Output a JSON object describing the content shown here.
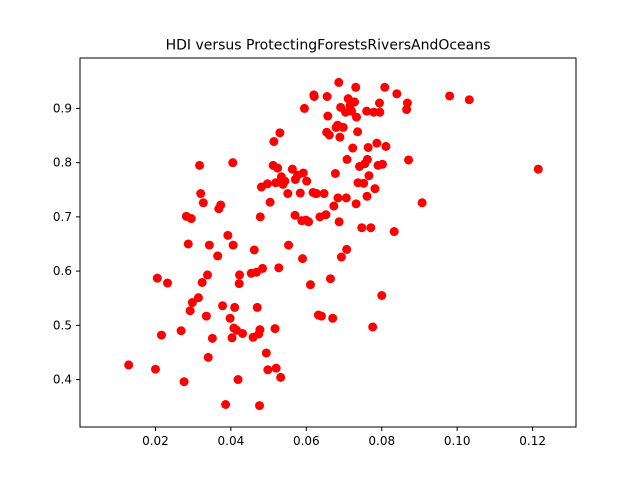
{
  "chart_data": {
    "type": "scatter",
    "title": "HDI versus ProtectingForestsRiversAndOceans",
    "xlabel": "",
    "ylabel": "",
    "xlim": [
      0.0,
      0.1315
    ],
    "ylim": [
      0.3125,
      0.993
    ],
    "xticks": [
      0.02,
      0.04,
      0.06,
      0.08,
      0.1,
      0.12
    ],
    "xtick_labels": [
      "0.02",
      "0.04",
      "0.06",
      "0.08",
      "0.10",
      "0.12"
    ],
    "yticks": [
      0.4,
      0.5,
      0.6,
      0.7,
      0.8,
      0.9
    ],
    "ytick_labels": [
      "0.4",
      "0.5",
      "0.6",
      "0.7",
      "0.8",
      "0.9"
    ],
    "grid": false,
    "legend": "none",
    "marker_color": "#ff0000",
    "points": [
      [
        0.0129,
        0.427
      ],
      [
        0.02,
        0.419
      ],
      [
        0.0205,
        0.587
      ],
      [
        0.0216,
        0.482
      ],
      [
        0.0232,
        0.578
      ],
      [
        0.0268,
        0.49
      ],
      [
        0.0276,
        0.396
      ],
      [
        0.0282,
        0.701
      ],
      [
        0.0287,
        0.65
      ],
      [
        0.0292,
        0.527
      ],
      [
        0.0295,
        0.697
      ],
      [
        0.0298,
        0.542
      ],
      [
        0.0314,
        0.551
      ],
      [
        0.0317,
        0.795
      ],
      [
        0.032,
        0.743
      ],
      [
        0.0324,
        0.579
      ],
      [
        0.0327,
        0.726
      ],
      [
        0.0335,
        0.517
      ],
      [
        0.0338,
        0.593
      ],
      [
        0.034,
        0.441
      ],
      [
        0.0343,
        0.648
      ],
      [
        0.0351,
        0.476
      ],
      [
        0.0365,
        0.628
      ],
      [
        0.0368,
        0.715
      ],
      [
        0.0373,
        0.722
      ],
      [
        0.0378,
        0.536
      ],
      [
        0.0386,
        0.354
      ],
      [
        0.0392,
        0.666
      ],
      [
        0.0398,
        0.513
      ],
      [
        0.0403,
        0.477
      ],
      [
        0.0405,
        0.8
      ],
      [
        0.0406,
        0.648
      ],
      [
        0.0408,
        0.495
      ],
      [
        0.041,
        0.533
      ],
      [
        0.0415,
        0.491
      ],
      [
        0.0419,
        0.4
      ],
      [
        0.0422,
        0.577
      ],
      [
        0.0423,
        0.593
      ],
      [
        0.0431,
        0.485
      ],
      [
        0.0454,
        0.596
      ],
      [
        0.0459,
        0.478
      ],
      [
        0.0462,
        0.639
      ],
      [
        0.0468,
        0.598
      ],
      [
        0.047,
        0.533
      ],
      [
        0.0474,
        0.484
      ],
      [
        0.0476,
        0.352
      ],
      [
        0.0477,
        0.492
      ],
      [
        0.0478,
        0.7
      ],
      [
        0.0481,
        0.755
      ],
      [
        0.0484,
        0.605
      ],
      [
        0.0494,
        0.449
      ],
      [
        0.0497,
        0.761
      ],
      [
        0.0498,
        0.418
      ],
      [
        0.0504,
        0.727
      ],
      [
        0.0512,
        0.795
      ],
      [
        0.0514,
        0.839
      ],
      [
        0.0517,
        0.494
      ],
      [
        0.0519,
        0.763
      ],
      [
        0.052,
        0.421
      ],
      [
        0.0524,
        0.79
      ],
      [
        0.0527,
        0.606
      ],
      [
        0.053,
        0.855
      ],
      [
        0.0532,
        0.404
      ],
      [
        0.0534,
        0.774
      ],
      [
        0.0538,
        0.76
      ],
      [
        0.0543,
        0.766
      ],
      [
        0.0551,
        0.743
      ],
      [
        0.0553,
        0.648
      ],
      [
        0.0563,
        0.788
      ],
      [
        0.057,
        0.703
      ],
      [
        0.0571,
        0.769
      ],
      [
        0.0577,
        0.777
      ],
      [
        0.0584,
        0.744
      ],
      [
        0.0588,
        0.693
      ],
      [
        0.059,
        0.623
      ],
      [
        0.0592,
        0.781
      ],
      [
        0.0595,
        0.9
      ],
      [
        0.0599,
        0.694
      ],
      [
        0.0601,
        0.766
      ],
      [
        0.0606,
        0.691
      ],
      [
        0.0611,
        0.575
      ],
      [
        0.0618,
        0.745
      ],
      [
        0.062,
        0.925
      ],
      [
        0.0621,
        0.922
      ],
      [
        0.0625,
        0.743
      ],
      [
        0.0627,
        0.743
      ],
      [
        0.0632,
        0.519
      ],
      [
        0.0636,
        0.7
      ],
      [
        0.064,
        0.517
      ],
      [
        0.0647,
        0.743
      ],
      [
        0.0652,
        0.704
      ],
      [
        0.0654,
        0.856
      ],
      [
        0.0655,
        0.922
      ],
      [
        0.0657,
        0.886
      ],
      [
        0.0661,
        0.851
      ],
      [
        0.0664,
        0.586
      ],
      [
        0.067,
        0.513
      ],
      [
        0.0673,
        0.72
      ],
      [
        0.0677,
        0.78
      ],
      [
        0.0679,
        0.865
      ],
      [
        0.0683,
        0.869
      ],
      [
        0.0684,
        0.735
      ],
      [
        0.0686,
        0.948
      ],
      [
        0.0687,
        0.691
      ],
      [
        0.0689,
        0.847
      ],
      [
        0.0691,
        0.902
      ],
      [
        0.0693,
        0.626
      ],
      [
        0.0698,
        0.865
      ],
      [
        0.0704,
        0.893
      ],
      [
        0.0706,
        0.735
      ],
      [
        0.0707,
        0.64
      ],
      [
        0.0708,
        0.806
      ],
      [
        0.0711,
        0.918
      ],
      [
        0.0716,
        0.905
      ],
      [
        0.072,
        0.895
      ],
      [
        0.0723,
        0.827
      ],
      [
        0.0728,
        0.912
      ],
      [
        0.0731,
        0.939
      ],
      [
        0.0732,
        0.724
      ],
      [
        0.0733,
        0.884
      ],
      [
        0.0736,
        0.857
      ],
      [
        0.0737,
        0.763
      ],
      [
        0.0741,
        0.793
      ],
      [
        0.0747,
        0.68
      ],
      [
        0.0752,
        0.762
      ],
      [
        0.0755,
        0.798
      ],
      [
        0.076,
        0.895
      ],
      [
        0.0761,
        0.738
      ],
      [
        0.0762,
        0.806
      ],
      [
        0.0764,
        0.828
      ],
      [
        0.0766,
        0.776
      ],
      [
        0.0771,
        0.68
      ],
      [
        0.0776,
        0.497
      ],
      [
        0.0779,
        0.893
      ],
      [
        0.0782,
        0.752
      ],
      [
        0.0787,
        0.836
      ],
      [
        0.079,
        0.795
      ],
      [
        0.0794,
        0.91
      ],
      [
        0.0795,
        0.893
      ],
      [
        0.08,
        0.555
      ],
      [
        0.0802,
        0.797
      ],
      [
        0.0808,
        0.939
      ],
      [
        0.0811,
        0.83
      ],
      [
        0.0833,
        0.673
      ],
      [
        0.084,
        0.927
      ],
      [
        0.0866,
        0.898
      ],
      [
        0.0868,
        0.91
      ],
      [
        0.0871,
        0.805
      ],
      [
        0.0907,
        0.726
      ],
      [
        0.098,
        0.923
      ],
      [
        0.1032,
        0.916
      ],
      [
        0.1215,
        0.788
      ]
    ]
  }
}
